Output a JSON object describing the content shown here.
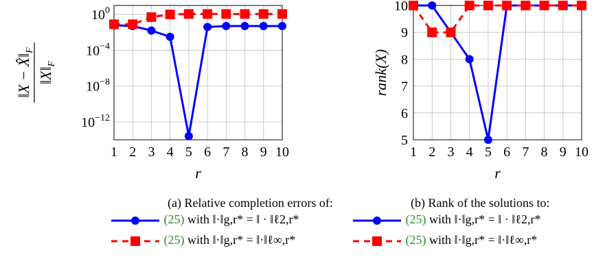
{
  "chart_data": [
    {
      "type": "line",
      "xlabel": "r",
      "ylabel": "‖X − X̂‖F / ‖X‖F",
      "yscale": "log",
      "x": [
        1,
        2,
        3,
        4,
        5,
        6,
        7,
        8,
        9,
        10
      ],
      "xlim": [
        1,
        10
      ],
      "ylim_exp": [
        -14,
        1
      ],
      "yticks": [
        "10^0",
        "10^−4",
        "10^−8",
        "10^−12"
      ],
      "ytick_exps": [
        0,
        -4,
        -8,
        -12
      ],
      "grid": true,
      "series": [
        {
          "color": "#0000ff",
          "marker": "circle",
          "style": "solid",
          "log10_values": [
            -1.2,
            -1.3,
            -1.8,
            -2.5,
            -13.6,
            -1.4,
            -1.3,
            -1.3,
            -1.3,
            -1.3
          ]
        },
        {
          "color": "#ff0000",
          "marker": "square",
          "style": "dashed",
          "log10_values": [
            -1.1,
            -1.1,
            -0.3,
            0.0,
            0.05,
            0.05,
            0.05,
            0.05,
            0.05,
            0.05
          ]
        }
      ],
      "caption": "(a) Relative completion errors of:",
      "legend": [
        {
          "ref": "(25)",
          "text": " with ‖·‖g,r* = ‖ · ‖ℓ2,r*"
        },
        {
          "ref": "(25)",
          "text": " with ‖·‖g,r* = ‖·‖ℓ∞,r*"
        }
      ]
    },
    {
      "type": "line",
      "xlabel": "r",
      "ylabel": "rank(X)",
      "x": [
        1,
        2,
        3,
        4,
        5,
        6,
        7,
        8,
        9,
        10
      ],
      "xlim": [
        1,
        10
      ],
      "ylim": [
        5,
        10
      ],
      "yticks": [
        5,
        6,
        7,
        8,
        9,
        10
      ],
      "grid": true,
      "series": [
        {
          "color": "#0000ff",
          "marker": "circle",
          "style": "solid",
          "values": [
            10,
            10,
            9,
            8,
            5,
            10,
            10,
            10,
            10,
            10
          ]
        },
        {
          "color": "#ff0000",
          "marker": "square",
          "style": "dashed",
          "values": [
            10,
            9,
            9,
            10,
            10,
            10,
            10,
            10,
            10,
            10
          ]
        }
      ],
      "caption": "(b) Rank of the solutions to:",
      "legend": [
        {
          "ref": "(25)",
          "text": " with ‖·‖g,r* = ‖ · ‖ℓ2,r*"
        },
        {
          "ref": "(25)",
          "text": " with ‖·‖g,r* = ‖·‖ℓ∞,r*"
        }
      ]
    }
  ]
}
